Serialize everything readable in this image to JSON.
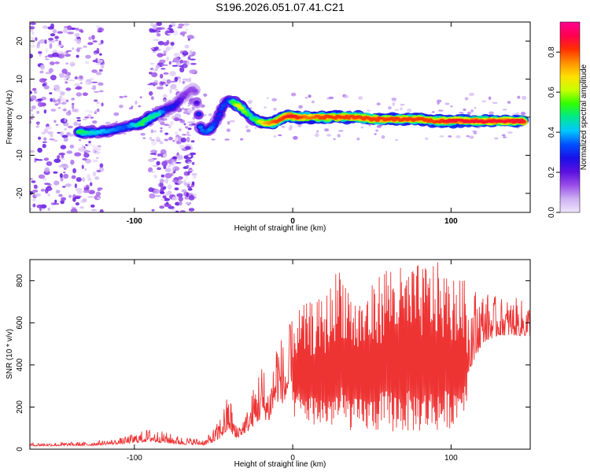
{
  "figure_title": "S196.2026.051.07.41.C21",
  "chart_data": [
    {
      "type": "heatmap",
      "title": "S196.2026.051.07.41.C21",
      "xlabel": "Height of straight line (km)",
      "ylabel": "Frequency (Hz)",
      "xlim": [
        -166,
        150
      ],
      "ylim": [
        -25,
        25
      ],
      "xticks": [
        "-100",
        "0",
        "100"
      ],
      "xtick_values": [
        -100,
        0,
        100
      ],
      "yticks": [
        "-20",
        "-10",
        "0",
        "10",
        "20"
      ],
      "ytick_values": [
        -20,
        -10,
        0,
        10,
        20
      ],
      "colorbar": {
        "label": "Normalized spectral amplitude",
        "range": [
          0.0,
          0.95
        ],
        "ticks": [
          "0.0",
          "0.2",
          "0.4",
          "0.6",
          "0.8"
        ],
        "tick_values": [
          0.0,
          0.2,
          0.4,
          0.6,
          0.8
        ],
        "colors": [
          "#f0e6fb",
          "#cdb0f2",
          "#9a4de8",
          "#5a10e0",
          "#1a10e8",
          "#0050ff",
          "#00c8ff",
          "#00e890",
          "#30ff00",
          "#c8ff00",
          "#ffe000",
          "#ff9000",
          "#ff3000",
          "#ff0050",
          "#ff0090"
        ]
      },
      "ridge": {
        "height_km": [
          -135,
          -125,
          -115,
          -105,
          -95,
          -90,
          -85,
          -80,
          -75,
          -70,
          -65,
          -62,
          -58,
          -55,
          -52,
          -48,
          -44,
          -41,
          -38,
          -34,
          -30,
          -26,
          -22,
          -18,
          -14,
          -10,
          -6,
          -2,
          0,
          10,
          20,
          30,
          40,
          50,
          60,
          70,
          80,
          90,
          100,
          110,
          120,
          130,
          140,
          147
        ],
        "frequency_hz": [
          -4,
          -4,
          -3.5,
          -2.5,
          -1.5,
          0,
          1,
          2,
          3,
          5,
          7,
          7.5,
          -3,
          -4,
          -3,
          -1,
          3,
          4.5,
          4,
          3,
          1.5,
          0,
          -1,
          -1.5,
          -1.5,
          -1,
          0,
          0.5,
          0,
          0,
          0,
          0,
          0,
          -0.5,
          -0.5,
          -0.5,
          -0.5,
          -1,
          -1,
          -1,
          -1,
          -1,
          -1,
          -1
        ],
        "amplitude": [
          0.55,
          0.45,
          0.4,
          0.35,
          0.55,
          0.5,
          0.5,
          0.3,
          0.3,
          0.2,
          0.15,
          0.15,
          0.4,
          0.35,
          0.4,
          0.3,
          0.35,
          0.3,
          0.55,
          0.7,
          0.6,
          0.5,
          0.6,
          0.75,
          0.8,
          0.85,
          0.85,
          0.9,
          0.9,
          0.8,
          0.85,
          0.85,
          0.85,
          0.85,
          0.85,
          0.85,
          0.85,
          0.85,
          0.9,
          0.9,
          0.9,
          0.9,
          0.9,
          0.9
        ]
      },
      "noise_bands_km": [
        [
          -166,
          -120
        ],
        [
          -90,
          -62
        ]
      ]
    },
    {
      "type": "line",
      "xlabel": "Height of straight line (km)",
      "ylabel": "SNR (10 * v/v)",
      "xlim": [
        -166,
        150
      ],
      "ylim": [
        0,
        900
      ],
      "xticks": [
        "-100",
        "0",
        "100"
      ],
      "xtick_values": [
        -100,
        0,
        100
      ],
      "yticks": [
        "0",
        "200",
        "400",
        "600",
        "800"
      ],
      "ytick_values": [
        0,
        200,
        400,
        600,
        800
      ],
      "series": [
        {
          "name": "SNR",
          "color": "#ee3333",
          "envelope_x": [
            -166,
            -130,
            -110,
            -90,
            -70,
            -55,
            -48,
            -44,
            -40,
            -36,
            -32,
            -28,
            -20,
            -15,
            -10,
            -5,
            0,
            10,
            20,
            30,
            40,
            50,
            60,
            70,
            80,
            90,
            100,
            110,
            120,
            130,
            140,
            150
          ],
          "envelope_low": [
            10,
            10,
            15,
            15,
            10,
            10,
            10,
            20,
            30,
            20,
            40,
            50,
            40,
            80,
            100,
            120,
            150,
            120,
            100,
            100,
            80,
            80,
            80,
            80,
            80,
            80,
            100,
            200,
            420,
            480,
            480,
            480
          ],
          "envelope_high": [
            30,
            35,
            50,
            100,
            60,
            50,
            120,
            200,
            280,
            120,
            150,
            200,
            450,
            300,
            600,
            500,
            650,
            700,
            720,
            900,
            720,
            780,
            900,
            860,
            880,
            900,
            820,
            800,
            760,
            720,
            720,
            700
          ]
        }
      ]
    }
  ]
}
